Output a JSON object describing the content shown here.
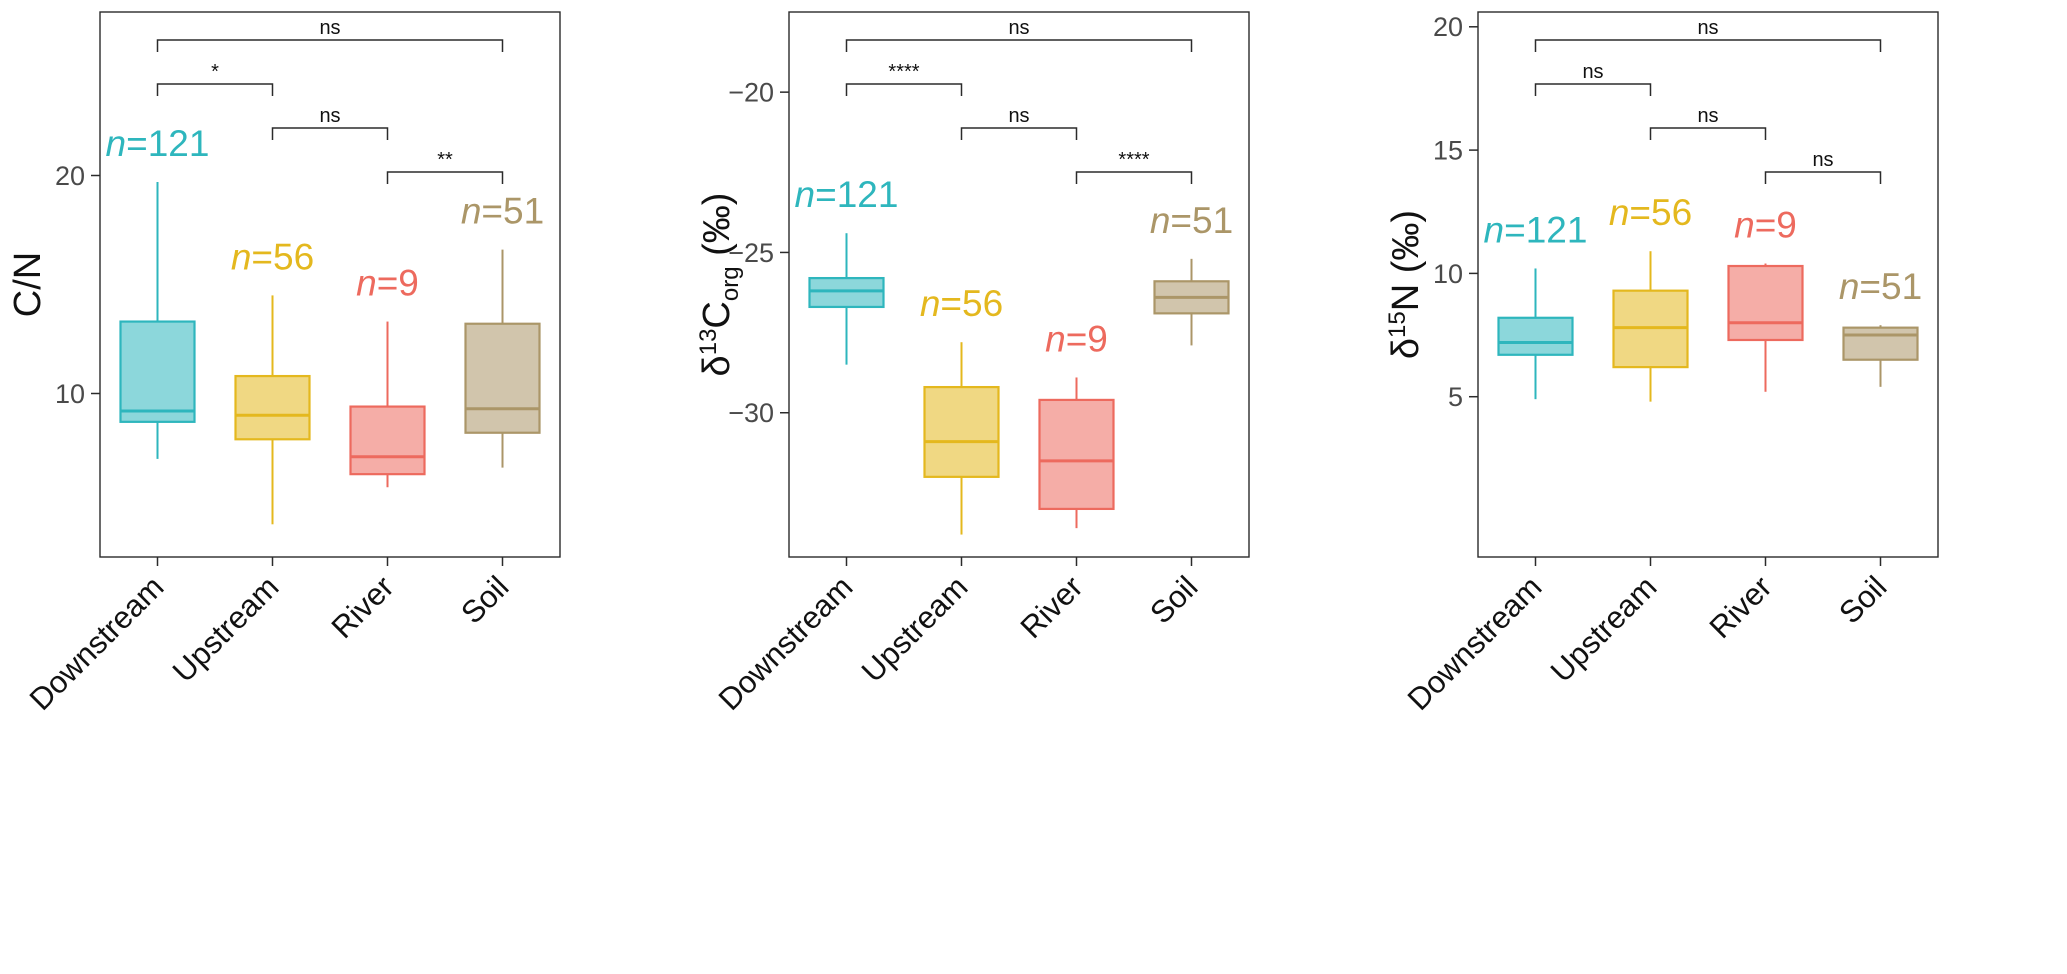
{
  "figure": {
    "groups": [
      "Downstream",
      "Upstream",
      "River",
      "Soil"
    ],
    "group_colors": [
      "#2eb6bd",
      "#e4b81e",
      "#ed6a5e",
      "#ab9668"
    ],
    "n_labels": [
      "n=121",
      "n=56",
      "n=9",
      "n=51"
    ],
    "axis_color": "#2b2b2b",
    "tick_label_color": "#4a4a4a",
    "text_color": "#111111"
  },
  "chart_data": [
    {
      "type": "boxplot",
      "ylabel_text": "C/N",
      "ylabel_parts": [
        {
          "t": "C/N"
        }
      ],
      "ylim": [
        2.5,
        27.5
      ],
      "yticks": [
        {
          "v": 20,
          "label": "20"
        },
        {
          "v": 10,
          "label": "10"
        }
      ],
      "categories": [
        "Downstream",
        "Upstream",
        "River",
        "Soil"
      ],
      "series": [
        {
          "name": "Downstream",
          "n": 121,
          "whisker_low": 7.0,
          "q1": 8.7,
          "median": 9.2,
          "q3": 13.3,
          "whisker_high": 19.7
        },
        {
          "name": "Upstream",
          "n": 56,
          "whisker_low": 4.0,
          "q1": 7.9,
          "median": 9.0,
          "q3": 10.8,
          "whisker_high": 14.5
        },
        {
          "name": "River",
          "n": 9,
          "whisker_low": 5.7,
          "q1": 6.3,
          "median": 7.1,
          "q3": 9.4,
          "whisker_high": 13.3
        },
        {
          "name": "Soil",
          "n": 51,
          "whisker_low": 6.6,
          "q1": 8.2,
          "median": 9.3,
          "q3": 13.2,
          "whisker_high": 16.6
        }
      ],
      "annotations": [
        {
          "groups": [
            "Downstream",
            "Soil"
          ],
          "label": "ns"
        },
        {
          "groups": [
            "Downstream",
            "Upstream"
          ],
          "label": "*"
        },
        {
          "groups": [
            "Upstream",
            "River"
          ],
          "label": "ns"
        },
        {
          "groups": [
            "River",
            "Soil"
          ],
          "label": "**"
        }
      ]
    },
    {
      "type": "boxplot",
      "ylabel_text": "δ13Corg (‰)",
      "ylabel_parts": [
        {
          "t": "δ"
        },
        {
          "t": "13",
          "sup": true
        },
        {
          "t": "C"
        },
        {
          "t": "org",
          "sub": true
        },
        {
          "t": " (‰)"
        }
      ],
      "ylim": [
        -34.5,
        -17.5
      ],
      "yticks": [
        {
          "v": -20,
          "label": "−20"
        },
        {
          "v": -25,
          "label": "−25"
        },
        {
          "v": -30,
          "label": "−30"
        }
      ],
      "categories": [
        "Downstream",
        "Upstream",
        "River",
        "Soil"
      ],
      "series": [
        {
          "name": "Downstream",
          "n": 121,
          "whisker_low": -28.5,
          "q1": -26.7,
          "median": -26.2,
          "q3": -25.8,
          "whisker_high": -24.4
        },
        {
          "name": "Upstream",
          "n": 56,
          "whisker_low": -33.8,
          "q1": -32.0,
          "median": -30.9,
          "q3": -29.2,
          "whisker_high": -27.8
        },
        {
          "name": "River",
          "n": 9,
          "whisker_low": -33.6,
          "q1": -33.0,
          "median": -31.5,
          "q3": -29.6,
          "whisker_high": -28.9
        },
        {
          "name": "Soil",
          "n": 51,
          "whisker_low": -27.9,
          "q1": -26.9,
          "median": -26.4,
          "q3": -25.9,
          "whisker_high": -25.2
        }
      ],
      "annotations": [
        {
          "groups": [
            "Downstream",
            "Soil"
          ],
          "label": "ns"
        },
        {
          "groups": [
            "Downstream",
            "Upstream"
          ],
          "label": "****"
        },
        {
          "groups": [
            "Upstream",
            "River"
          ],
          "label": "ns"
        },
        {
          "groups": [
            "River",
            "Soil"
          ],
          "label": "****"
        }
      ]
    },
    {
      "type": "boxplot",
      "ylabel_text": "δ15N (‰)",
      "ylabel_parts": [
        {
          "t": "δ"
        },
        {
          "t": "15",
          "sup": true
        },
        {
          "t": "N"
        },
        {
          "t": " (‰)"
        }
      ],
      "ylim": [
        -1.5,
        20.6
      ],
      "yticks": [
        {
          "v": 20,
          "label": "20"
        },
        {
          "v": 15,
          "label": "15"
        },
        {
          "v": 10,
          "label": "10"
        },
        {
          "v": 5,
          "label": "5"
        }
      ],
      "categories": [
        "Downstream",
        "Upstream",
        "River",
        "Soil"
      ],
      "series": [
        {
          "name": "Downstream",
          "n": 121,
          "whisker_low": 4.9,
          "q1": 6.7,
          "median": 7.2,
          "q3": 8.2,
          "whisker_high": 10.2
        },
        {
          "name": "Upstream",
          "n": 56,
          "whisker_low": 4.8,
          "q1": 6.2,
          "median": 7.8,
          "q3": 9.3,
          "whisker_high": 10.9
        },
        {
          "name": "River",
          "n": 9,
          "whisker_low": 5.2,
          "q1": 7.3,
          "median": 8.0,
          "q3": 10.3,
          "whisker_high": 10.4
        },
        {
          "name": "Soil",
          "n": 51,
          "whisker_low": 5.4,
          "q1": 6.5,
          "median": 7.5,
          "q3": 7.8,
          "whisker_high": 7.9
        }
      ],
      "annotations": [
        {
          "groups": [
            "Downstream",
            "Soil"
          ],
          "label": "ns"
        },
        {
          "groups": [
            "Downstream",
            "Upstream"
          ],
          "label": "ns"
        },
        {
          "groups": [
            "Upstream",
            "River"
          ],
          "label": "ns"
        },
        {
          "groups": [
            "River",
            "Soil"
          ],
          "label": "ns"
        }
      ]
    }
  ]
}
